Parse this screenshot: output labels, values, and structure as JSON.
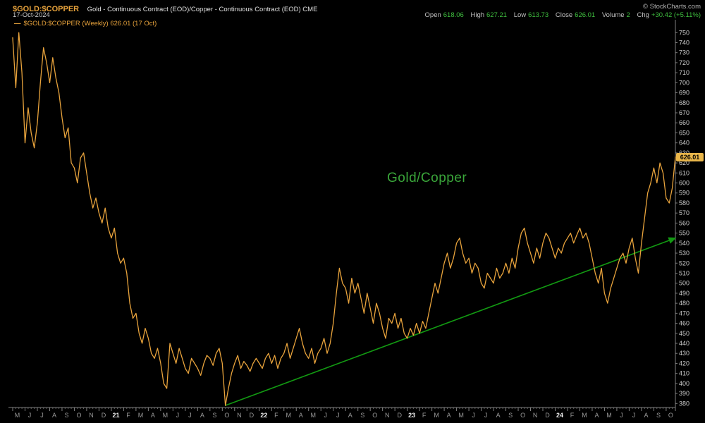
{
  "header": {
    "symbol": "$GOLD:$COPPER",
    "description": "Gold - Continuous Contract (EOD)/Copper - Continuous Contract (EOD) CME",
    "source": "© StockCharts.com",
    "date": "17-Oct-2024",
    "quote": {
      "open_label": "Open",
      "open_value": "618.06",
      "high_label": "High",
      "high_value": "627.21",
      "low_label": "Low",
      "low_value": "613.73",
      "close_label": "Close",
      "close_value": "626.01",
      "volume_label": "Volume",
      "volume_value": "2",
      "chg_label": "Chg",
      "chg_value": "+30.42 (+5.11%)"
    }
  },
  "legend": {
    "swatch": "—",
    "text": "$GOLD:$COPPER (Weekly) 626.01 (17 Oct)"
  },
  "colors": {
    "price_line": "#e8a33c",
    "trendline_green": "#129912",
    "annotation_green": "#3aa63a",
    "quote_value_green": "#3fbf3f",
    "price_label_gold": "#e9b64a",
    "axis_gray": "#808080"
  },
  "chart_data": {
    "type": "line",
    "title": "$GOLD:$COPPER (Weekly)",
    "timeframe": "Weekly",
    "x_start": "May 2020",
    "x_end": "17 Oct 2024",
    "annotation": {
      "text": "Gold/Copper",
      "color": "#3aa63a"
    },
    "last_price": 626.01,
    "last_price_label": "626.01",
    "x_ticks": [
      "M",
      "J",
      "J",
      "A",
      "S",
      "O",
      "N",
      "D",
      "21",
      "F",
      "M",
      "A",
      "M",
      "J",
      "J",
      "A",
      "S",
      "O",
      "N",
      "D",
      "22",
      "F",
      "M",
      "A",
      "M",
      "J",
      "J",
      "A",
      "S",
      "O",
      "N",
      "D",
      "23",
      "F",
      "M",
      "A",
      "M",
      "J",
      "J",
      "A",
      "S",
      "O",
      "N",
      "D",
      "24",
      "F",
      "M",
      "A",
      "M",
      "J",
      "J",
      "A",
      "S",
      "O"
    ],
    "year_tick_indices": [
      8,
      20,
      32,
      44
    ],
    "y_ticks": [
      750,
      740,
      730,
      720,
      710,
      700,
      690,
      680,
      670,
      660,
      650,
      640,
      630,
      620,
      610,
      600,
      590,
      580,
      570,
      560,
      550,
      540,
      530,
      520,
      510,
      500,
      490,
      480,
      470,
      460,
      450,
      440,
      430,
      420,
      410,
      400,
      390,
      380
    ],
    "ylim": [
      376,
      753
    ],
    "grid": false,
    "legend_position": "top-left",
    "series": [
      {
        "name": "$GOLD:$COPPER (Weekly)",
        "color": "#e8a33c",
        "values": [
          745,
          695,
          750,
          710,
          640,
          675,
          650,
          635,
          660,
          700,
          735,
          720,
          700,
          725,
          705,
          690,
          665,
          645,
          655,
          620,
          615,
          600,
          625,
          630,
          610,
          590,
          575,
          585,
          570,
          560,
          575,
          555,
          545,
          555,
          530,
          520,
          525,
          510,
          480,
          465,
          470,
          450,
          440,
          455,
          445,
          430,
          425,
          435,
          420,
          400,
          395,
          440,
          430,
          420,
          435,
          425,
          415,
          410,
          425,
          420,
          415,
          408,
          420,
          428,
          425,
          418,
          430,
          435,
          420,
          378,
          395,
          410,
          420,
          428,
          415,
          422,
          418,
          412,
          420,
          425,
          420,
          415,
          425,
          430,
          420,
          428,
          415,
          425,
          430,
          440,
          425,
          435,
          445,
          455,
          440,
          430,
          425,
          435,
          420,
          430,
          435,
          445,
          430,
          440,
          460,
          490,
          515,
          500,
          495,
          480,
          505,
          490,
          500,
          485,
          470,
          490,
          475,
          460,
          480,
          470,
          455,
          445,
          465,
          460,
          470,
          455,
          465,
          450,
          445,
          455,
          448,
          460,
          450,
          462,
          455,
          470,
          485,
          500,
          490,
          505,
          520,
          530,
          515,
          525,
          540,
          545,
          530,
          520,
          525,
          510,
          520,
          515,
          500,
          495,
          510,
          505,
          500,
          515,
          505,
          510,
          520,
          510,
          525,
          515,
          535,
          550,
          555,
          540,
          530,
          520,
          535,
          525,
          540,
          550,
          545,
          535,
          525,
          535,
          530,
          540,
          545,
          550,
          540,
          548,
          555,
          545,
          550,
          540,
          525,
          510,
          500,
          515,
          490,
          480,
          495,
          505,
          515,
          525,
          530,
          520,
          535,
          545,
          525,
          510,
          540,
          565,
          590,
          600,
          615,
          600,
          620,
          610,
          585,
          580,
          595,
          626.01
        ]
      }
    ],
    "trendline": {
      "color": "#129912",
      "start_week": 69,
      "start_value": 378,
      "end_week": 215,
      "end_value": 545
    }
  }
}
